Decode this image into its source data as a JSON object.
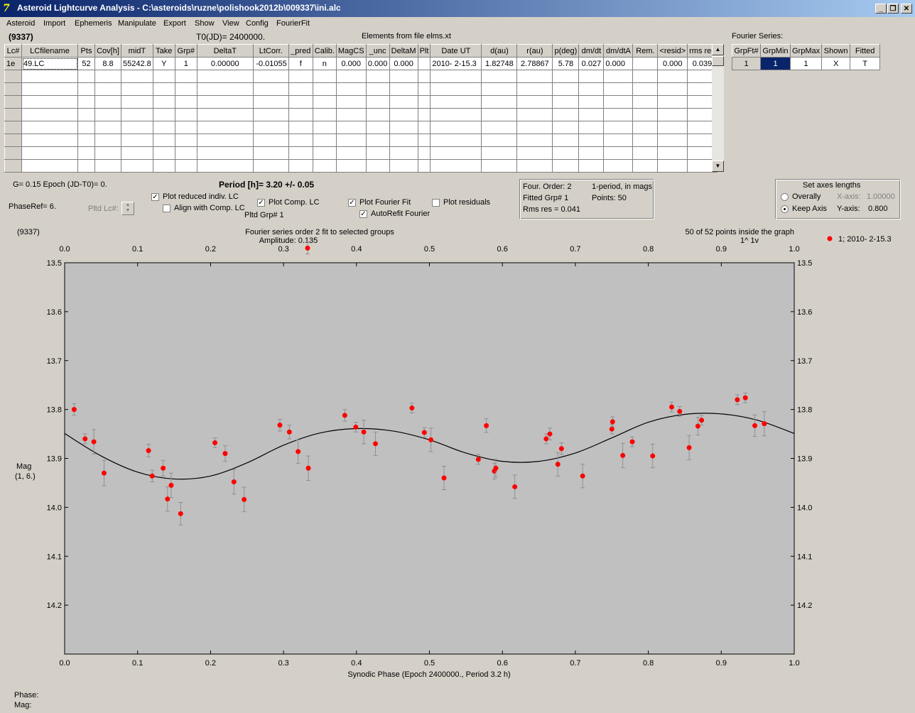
{
  "window": {
    "title": "Asteroid Lightcurve Analysis - C:\\asteroids\\ruzne\\polishook2012b\\009337\\ini.alc",
    "icon": "app-logo-icon",
    "buttons": {
      "minimize": "_",
      "restore": "❐",
      "close": "✕"
    }
  },
  "menu": [
    "Asteroid",
    "Import",
    "Ephemeris",
    "Manipulate",
    "Export",
    "Show",
    "View",
    "Config",
    "FourierFit"
  ],
  "header": {
    "asteroid": "(9337)",
    "t0": "T0(JD)= 2400000.",
    "elements": "Elements from file elms.xt"
  },
  "lc_table": {
    "columns": [
      "Lc#",
      "LCfilename",
      "Pts",
      "Cov[h]",
      "midT",
      "Take",
      "Grp#",
      "DeltaT",
      "LtCorr.",
      "_pred",
      "Calib.",
      "MagCS",
      "_unc",
      "DeltaM",
      "Plt",
      "Date UT",
      "d(au)",
      "r(au)",
      "p(deg)",
      "dm/dt",
      "dm/dtA",
      "Rem.",
      "<resid>",
      "rms res"
    ],
    "rows": [
      [
        "1e",
        "49.LC",
        "52",
        "8.8",
        "55242.8",
        "Y",
        "1",
        "0.00000",
        "-0.01055",
        "f",
        "n",
        "0.000",
        "0.000",
        "0.000",
        "",
        "2010- 2-15.3",
        "1.82748",
        "2.78867",
        "5.78",
        "0.027",
        "0.000",
        "",
        "0.000",
        "0.039"
      ]
    ],
    "empty_rows": 8
  },
  "fourier_table": {
    "label": "Fourier Series:",
    "columns": [
      "GrpFt#",
      "GrpMin",
      "GrpMax",
      "Shown",
      "Fitted"
    ],
    "rows": [
      [
        "1",
        "1",
        "1",
        "X",
        "T"
      ]
    ]
  },
  "controls": {
    "g_epoch": "G= 0.15   Epoch (JD-T0)= 0.",
    "phase_ref": "PhaseRef= 6.",
    "pltd_lc": "Pltd Lc#:",
    "period": "Period [h]= 3.20 +/- 0.05",
    "plot_reduced": {
      "label": "Plot reduced indiv. LC",
      "checked": true
    },
    "align_comp": {
      "label": "Align with Comp. LC",
      "checked": false
    },
    "plot_comp": {
      "label": "Plot Comp. LC",
      "checked": true
    },
    "pltd_grp": "Pltd Grp#  1",
    "plot_fourier": {
      "label": "Plot Fourier Fit",
      "checked": true
    },
    "autorefit": {
      "label": "AutoRefit Fourier",
      "checked": true
    },
    "plot_residuals": {
      "label": "Plot residuals",
      "checked": false
    }
  },
  "info_box": {
    "four_order": "Four. Order:  2",
    "one_period": "1-period, in mags",
    "fitted_grp": "Fitted Grp# 1",
    "points": "Points: 50",
    "rms_res": "Rms res     = 0.041"
  },
  "axes_box": {
    "title": "Set axes lengths",
    "overally": "Overally",
    "keep_axis": "Keep Axis",
    "selected": "Keep Axis",
    "x_axis_label": "X-axis:",
    "x_axis_value": "1.00000",
    "y_axis_label": "Y-axis:",
    "y_axis_value": "0.800"
  },
  "plot": {
    "asteroid": "(9337)",
    "title_line1": "Fourier series order 2 fit to selected groups",
    "title_line2": "Amplitude: 0.135",
    "points_inside": "50 of 52 points inside the graph",
    "arrows": "1^    1v",
    "ylabel_line1": "Mag",
    "ylabel_line2": "(1, 6.)",
    "xlabel": "Synodic Phase (Epoch 2400000., Period 3.2 h)",
    "legend": "1; 2010- 2-15.3"
  },
  "status": {
    "phase": "Phase:",
    "mag": "Mag:"
  },
  "chart_data": {
    "type": "scatter",
    "title": "Fourier series order 2 fit to selected groups",
    "subtitle": "Amplitude: 0.135",
    "xlabel": "Synodic Phase (Epoch 2400000., Period 3.2 h)",
    "ylabel": "Mag (1, 6.)",
    "xlim": [
      0,
      1
    ],
    "ylim": [
      13.5,
      14.3
    ],
    "y_inverted": true,
    "x_ticks": [
      "0.0",
      "0.1",
      "0.2",
      "0.3",
      "0.4",
      "0.5",
      "0.6",
      "0.7",
      "0.8",
      "0.9",
      "1.0"
    ],
    "y_ticks": [
      "13.5",
      "13.6",
      "13.7",
      "13.8",
      "13.9",
      "14.0",
      "14.1",
      "14.2"
    ],
    "point_color": "#ff0000",
    "curve_color": "#000000",
    "series": [
      {
        "name": "1; 2010- 2-15.3",
        "points": [
          [
            0.013,
            13.8,
            0.012
          ],
          [
            0.028,
            13.86,
            0.01
          ],
          [
            0.04,
            13.866,
            0.025
          ],
          [
            0.054,
            13.93,
            0.026
          ],
          [
            0.115,
            13.884,
            0.013
          ],
          [
            0.12,
            13.936,
            0.012
          ],
          [
            0.135,
            13.92,
            0.016
          ],
          [
            0.141,
            13.983,
            0.025
          ],
          [
            0.146,
            13.955,
            0.025
          ],
          [
            0.159,
            14.013,
            0.023
          ],
          [
            0.206,
            13.868,
            0.01
          ],
          [
            0.22,
            13.89,
            0.016
          ],
          [
            0.232,
            13.948,
            0.025
          ],
          [
            0.246,
            13.984,
            0.025
          ],
          [
            0.295,
            13.832,
            0.012
          ],
          [
            0.308,
            13.846,
            0.014
          ],
          [
            0.32,
            13.886,
            0.024
          ],
          [
            0.334,
            13.92,
            0.025
          ],
          [
            0.333,
            13.47,
            0.012
          ],
          [
            0.384,
            13.812,
            0.012
          ],
          [
            0.399,
            13.836,
            0.01
          ],
          [
            0.41,
            13.846,
            0.024
          ],
          [
            0.426,
            13.87,
            0.024
          ],
          [
            0.476,
            13.797,
            0.01
          ],
          [
            0.493,
            13.847,
            0.01
          ],
          [
            0.502,
            13.862,
            0.024
          ],
          [
            0.52,
            13.94,
            0.024
          ],
          [
            0.567,
            13.902,
            0.01
          ],
          [
            0.578,
            13.833,
            0.014
          ],
          [
            0.589,
            13.926,
            0.016
          ],
          [
            0.591,
            13.92,
            0.018
          ],
          [
            0.617,
            13.958,
            0.024
          ],
          [
            0.66,
            13.86,
            0.01
          ],
          [
            0.665,
            13.85,
            0.012
          ],
          [
            0.676,
            13.912,
            0.024
          ],
          [
            0.681,
            13.88,
            0.012
          ],
          [
            0.71,
            13.936,
            0.024
          ],
          [
            0.75,
            13.84,
            0.01
          ],
          [
            0.751,
            13.825,
            0.01
          ],
          [
            0.765,
            13.894,
            0.025
          ],
          [
            0.778,
            13.866,
            0.01
          ],
          [
            0.806,
            13.895,
            0.024
          ],
          [
            0.832,
            13.795,
            0.01
          ],
          [
            0.843,
            13.804,
            0.01
          ],
          [
            0.856,
            13.878,
            0.025
          ],
          [
            0.868,
            13.834,
            0.018
          ],
          [
            0.873,
            13.822,
            0.01
          ],
          [
            0.922,
            13.78,
            0.01
          ],
          [
            0.933,
            13.776,
            0.01
          ],
          [
            0.946,
            13.833,
            0.022
          ],
          [
            0.959,
            13.829,
            0.025
          ]
        ]
      }
    ],
    "fourier_fit": {
      "name": "Fourier series order 2",
      "x": [
        0.0,
        0.05,
        0.1,
        0.15,
        0.2,
        0.25,
        0.3,
        0.35,
        0.4,
        0.45,
        0.5,
        0.55,
        0.6,
        0.65,
        0.7,
        0.75,
        0.8,
        0.85,
        0.9,
        0.95,
        1.0
      ],
      "y": [
        13.849,
        13.895,
        13.928,
        13.942,
        13.936,
        13.909,
        13.873,
        13.848,
        13.839,
        13.844,
        13.862,
        13.889,
        13.906,
        13.906,
        13.889,
        13.858,
        13.826,
        13.81,
        13.809,
        13.822,
        13.849
      ]
    }
  }
}
